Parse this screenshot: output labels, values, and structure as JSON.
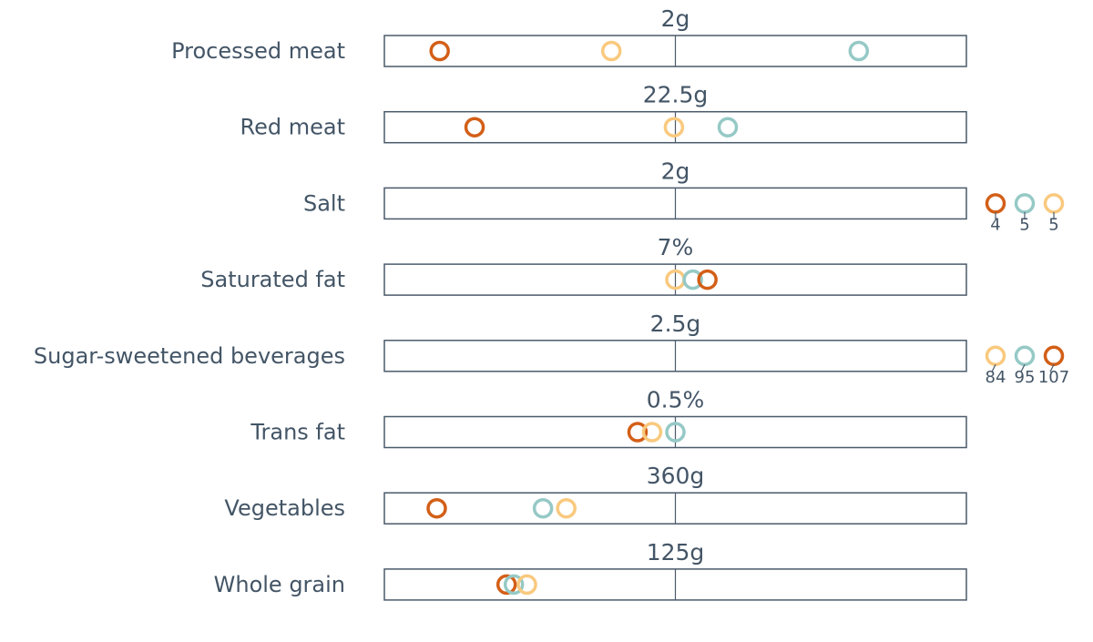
{
  "chart_data": {
    "type": "scatter",
    "title": "",
    "xlabel": "",
    "ylabel": "",
    "scale_note": "Each row's x-axis spans 0 to 2x the row's reference value; the centre line marks the reference value (ratio 1.0).",
    "xlim_ratio": [
      0,
      2
    ],
    "grid": false,
    "legend": "none",
    "colors": {
      "series_a": "#D35F17",
      "series_b": "#95C9C6",
      "series_c": "#F9C97E"
    },
    "rows": [
      {
        "name": "Processed meat",
        "target": "2g",
        "points": [
          {
            "series": "series_a",
            "ratio": 0.19
          },
          {
            "series": "series_c",
            "ratio": 0.78
          },
          {
            "series": "series_b",
            "ratio": 1.63
          }
        ],
        "overflow": []
      },
      {
        "name": "Red meat",
        "target": "22.5g",
        "points": [
          {
            "series": "series_a",
            "ratio": 0.31
          },
          {
            "series": "series_c",
            "ratio": 0.995
          },
          {
            "series": "series_b",
            "ratio": 1.18
          }
        ],
        "overflow": []
      },
      {
        "name": "Salt",
        "target": "2g",
        "points": [],
        "overflow": [
          {
            "series": "series_a",
            "label": "4"
          },
          {
            "series": "series_b",
            "label": "5"
          },
          {
            "series": "series_c",
            "label": "5"
          }
        ]
      },
      {
        "name": "Saturated fat",
        "target": "7%",
        "points": [
          {
            "series": "series_c",
            "ratio": 1.0
          },
          {
            "series": "series_b",
            "ratio": 1.06
          },
          {
            "series": "series_a",
            "ratio": 1.11
          }
        ],
        "overflow": []
      },
      {
        "name": "Sugar-sweetened beverages",
        "target": "2.5g",
        "points": [],
        "overflow": [
          {
            "series": "series_c",
            "label": "84"
          },
          {
            "series": "series_b",
            "label": "95"
          },
          {
            "series": "series_a",
            "label": "107"
          }
        ]
      },
      {
        "name": "Trans fat",
        "target": "0.5%",
        "points": [
          {
            "series": "series_a",
            "ratio": 0.87
          },
          {
            "series": "series_c",
            "ratio": 0.92
          },
          {
            "series": "series_b",
            "ratio": 1.0
          }
        ],
        "overflow": []
      },
      {
        "name": "Vegetables",
        "target": "360g",
        "points": [
          {
            "series": "series_a",
            "ratio": 0.18
          },
          {
            "series": "series_b",
            "ratio": 0.545
          },
          {
            "series": "series_c",
            "ratio": 0.625
          }
        ],
        "overflow": []
      },
      {
        "name": "Whole grain",
        "target": "125g",
        "points": [
          {
            "series": "series_a",
            "ratio": 0.42
          },
          {
            "series": "series_b",
            "ratio": 0.445
          },
          {
            "series": "series_c",
            "ratio": 0.49
          }
        ],
        "overflow": []
      }
    ]
  }
}
